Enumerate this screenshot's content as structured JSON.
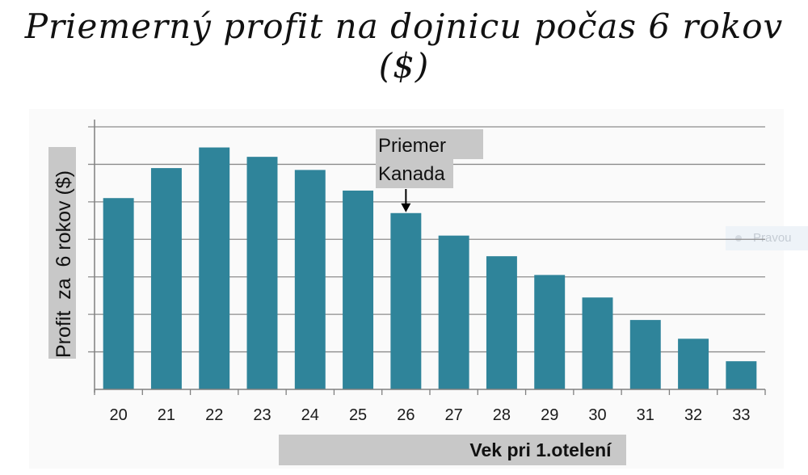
{
  "title": "Priemerný profit na dojnicu počas 6 rokov ($)",
  "ghost_tooltip": "Pravou",
  "chart_data": {
    "type": "bar",
    "title": "Priemerný profit na dojnicu počas 6 rokov ($)",
    "xlabel": "Vek pri 1.otelení",
    "ylabel": "Profit  za  6 rokov ($)",
    "categories": [
      "20",
      "21",
      "22",
      "23",
      "24",
      "25",
      "26",
      "27",
      "28",
      "29",
      "30",
      "31",
      "32",
      "33"
    ],
    "values": [
      5.1,
      5.9,
      6.45,
      6.2,
      5.85,
      5.3,
      4.7,
      4.1,
      3.55,
      3.05,
      2.45,
      1.85,
      1.35,
      0.75
    ],
    "ylim": [
      0,
      7
    ],
    "yticks": [
      0,
      1,
      2,
      3,
      4,
      5,
      6,
      7
    ],
    "ytick_labels_visible": false,
    "grid": true,
    "bar_color": "#2f849a",
    "annotation": {
      "text_line1": "Priemer",
      "text_line2": "Kanada",
      "category": "26"
    }
  }
}
